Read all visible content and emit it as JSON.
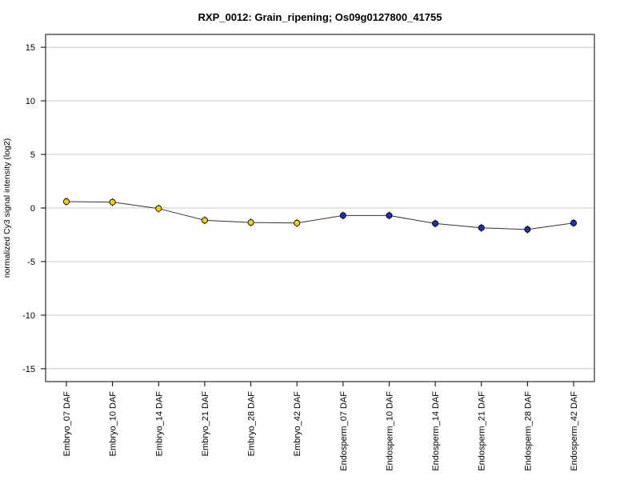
{
  "chart_data": {
    "type": "line",
    "title": "RXP_0012: Grain_ripening; Os09g0127800_41755",
    "xlabel": "",
    "ylabel": "normalized Cy3 signal intensity (log2)",
    "ylim": [
      -16.2,
      16.2
    ],
    "yticks": [
      -15,
      -10,
      -5,
      0,
      5,
      10,
      15
    ],
    "grid": true,
    "categories": [
      "Embryo_07 DAF",
      "Embryo_10 DAF",
      "Embryo_14 DAF",
      "Embryo_21 DAF",
      "Embryo_28 DAF",
      "Embryo_42 DAF",
      "Endosperm_07 DAF",
      "Endosperm_10 DAF",
      "Endosperm_14 DAF",
      "Endosperm_21 DAF",
      "Endosperm_28 DAF",
      "Endosperm_42 DAF"
    ],
    "series": [
      {
        "values": [
          0.6,
          0.55,
          -0.05,
          -1.15,
          -1.35,
          -1.4,
          -0.7,
          -0.7,
          -1.45,
          -1.85,
          -2.0,
          -1.4
        ],
        "point_colors": [
          "#f2d20a",
          "#f2d20a",
          "#f2d20a",
          "#f2d20a",
          "#f2d20a",
          "#f2d20a",
          "#1c2fb8",
          "#1c2fb8",
          "#1c2fb8",
          "#1c2fb8",
          "#1c2fb8",
          "#1c2fb8"
        ]
      }
    ],
    "colors": {
      "embryo": "#f2d20a",
      "endosperm": "#1c2fb8",
      "line": "#333333",
      "grid": "#c8c8c8"
    }
  }
}
